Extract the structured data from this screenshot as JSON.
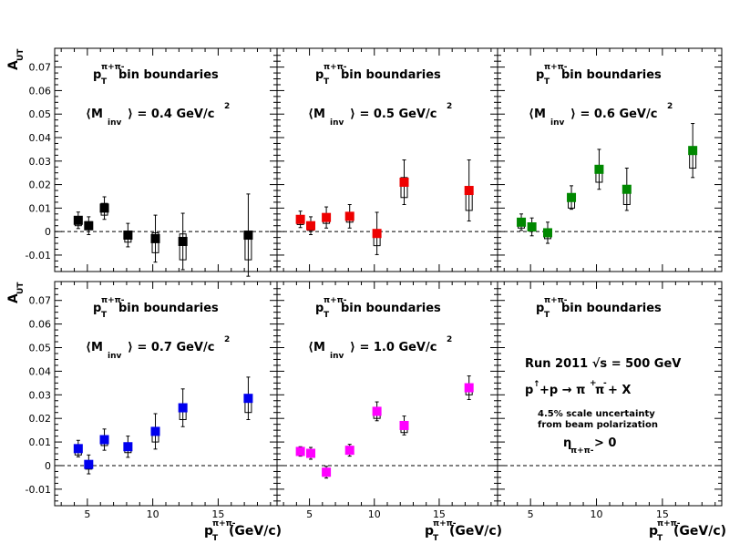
{
  "chart_data": [
    {
      "type": "scatter",
      "panel": "top-left",
      "ylabel": "A_UT",
      "header": "p_T^{π+π-} bin boundaries",
      "mass_label": "⟨M_inv⟩ = 0.4 GeV/c²",
      "color": "#000000",
      "xlim": [
        2.5,
        19.5
      ],
      "ylim": [
        -0.017,
        0.078
      ],
      "points": [
        {
          "x": 4.3,
          "y": 0.0048,
          "err": 0.0035,
          "sys_lo": 0.0025,
          "sys_hi": 0.0062
        },
        {
          "x": 5.1,
          "y": 0.0025,
          "err": 0.0038,
          "sys_lo": 0.0008,
          "sys_hi": 0.0042
        },
        {
          "x": 6.3,
          "y": 0.01,
          "err": 0.0048,
          "sys_lo": 0.007,
          "sys_hi": 0.012
        },
        {
          "x": 8.1,
          "y": -0.0015,
          "err": 0.005,
          "sys_lo": -0.0045,
          "sys_hi": 0.0002
        },
        {
          "x": 10.2,
          "y": -0.003,
          "err": 0.01,
          "sys_lo": -0.009,
          "sys_hi": -0.0005
        },
        {
          "x": 12.3,
          "y": -0.0042,
          "err": 0.012,
          "sys_lo": -0.012,
          "sys_hi": -0.001
        },
        {
          "x": 17.3,
          "y": -0.0015,
          "err": 0.0175,
          "sys_lo": -0.012,
          "sys_hi": 0.0
        }
      ]
    },
    {
      "type": "scatter",
      "panel": "top-middle",
      "header": "p_T^{π+π-} bin boundaries",
      "mass_label": "⟨M_inv⟩ = 0.5 GeV/c²",
      "color": "#ee0000",
      "xlim": [
        2.5,
        19.5
      ],
      "ylim": [
        -0.017,
        0.078
      ],
      "points": [
        {
          "x": 4.3,
          "y": 0.0052,
          "err": 0.0035,
          "sys_lo": 0.003,
          "sys_hi": 0.006
        },
        {
          "x": 5.1,
          "y": 0.0025,
          "err": 0.0038,
          "sys_lo": 0.0005,
          "sys_hi": 0.0035
        },
        {
          "x": 6.3,
          "y": 0.006,
          "err": 0.0045,
          "sys_lo": 0.0035,
          "sys_hi": 0.0075
        },
        {
          "x": 8.1,
          "y": 0.0065,
          "err": 0.005,
          "sys_lo": 0.004,
          "sys_hi": 0.008
        },
        {
          "x": 10.2,
          "y": -0.0008,
          "err": 0.009,
          "sys_lo": -0.006,
          "sys_hi": 0.0
        },
        {
          "x": 12.3,
          "y": 0.021,
          "err": 0.0095,
          "sys_lo": 0.0145,
          "sys_hi": 0.023
        },
        {
          "x": 17.3,
          "y": 0.0175,
          "err": 0.013,
          "sys_lo": 0.009,
          "sys_hi": 0.019
        }
      ]
    },
    {
      "type": "scatter",
      "panel": "top-right",
      "header": "p_T^{π+π-} bin boundaries",
      "mass_label": "⟨M_inv⟩ = 0.6 GeV/c²",
      "color": "#008800",
      "xlim": [
        2.5,
        19.5
      ],
      "ylim": [
        -0.017,
        0.078
      ],
      "points": [
        {
          "x": 4.3,
          "y": 0.004,
          "err": 0.0035,
          "sys_lo": 0.0015,
          "sys_hi": 0.0048
        },
        {
          "x": 5.1,
          "y": 0.002,
          "err": 0.0038,
          "sys_lo": 0.0002,
          "sys_hi": 0.003
        },
        {
          "x": 6.3,
          "y": -0.0005,
          "err": 0.0045,
          "sys_lo": -0.003,
          "sys_hi": 0.0002
        },
        {
          "x": 8.1,
          "y": 0.0145,
          "err": 0.005,
          "sys_lo": 0.01,
          "sys_hi": 0.016
        },
        {
          "x": 10.2,
          "y": 0.0265,
          "err": 0.0085,
          "sys_lo": 0.021,
          "sys_hi": 0.028
        },
        {
          "x": 12.3,
          "y": 0.018,
          "err": 0.009,
          "sys_lo": 0.0115,
          "sys_hi": 0.0195
        },
        {
          "x": 17.3,
          "y": 0.0345,
          "err": 0.0115,
          "sys_lo": 0.027,
          "sys_hi": 0.036
        }
      ]
    },
    {
      "type": "scatter",
      "panel": "bottom-left",
      "ylabel": "A_UT",
      "xlabel": "p_T^{π+π-}(GeV/c)",
      "header": "p_T^{π+π-} bin boundaries",
      "mass_label": "⟨M_inv⟩ = 0.7 GeV/c²",
      "color": "#0000ee",
      "xlim": [
        2.5,
        19.5
      ],
      "ylim": [
        -0.017,
        0.078
      ],
      "points": [
        {
          "x": 4.3,
          "y": 0.0072,
          "err": 0.0035,
          "sys_lo": 0.0045,
          "sys_hi": 0.008
        },
        {
          "x": 5.1,
          "y": 0.0005,
          "err": 0.004,
          "sys_lo": -0.0015,
          "sys_hi": 0.001
        },
        {
          "x": 6.3,
          "y": 0.011,
          "err": 0.0045,
          "sys_lo": 0.0085,
          "sys_hi": 0.012
        },
        {
          "x": 8.1,
          "y": 0.008,
          "err": 0.0045,
          "sys_lo": 0.0055,
          "sys_hi": 0.009
        },
        {
          "x": 10.2,
          "y": 0.0145,
          "err": 0.0075,
          "sys_lo": 0.01,
          "sys_hi": 0.0155
        },
        {
          "x": 12.3,
          "y": 0.0245,
          "err": 0.008,
          "sys_lo": 0.0195,
          "sys_hi": 0.026
        },
        {
          "x": 17.3,
          "y": 0.0285,
          "err": 0.009,
          "sys_lo": 0.0225,
          "sys_hi": 0.03
        }
      ]
    },
    {
      "type": "scatter",
      "panel": "bottom-middle",
      "xlabel": "p_T^{π+π-} (GeV/c)",
      "header": "p_T^{π+π-} bin boundaries",
      "mass_label": "⟨M_inv⟩ = 1.0 GeV/c²",
      "color": "#ff00ff",
      "xlim": [
        2.5,
        19.5
      ],
      "ylim": [
        -0.017,
        0.078
      ],
      "points": [
        {
          "x": 4.3,
          "y": 0.006,
          "err": 0.002,
          "sys_lo": 0.0045,
          "sys_hi": 0.0065
        },
        {
          "x": 5.1,
          "y": 0.0052,
          "err": 0.0025,
          "sys_lo": 0.0035,
          "sys_hi": 0.0058
        },
        {
          "x": 6.3,
          "y": -0.0028,
          "err": 0.0025,
          "sys_lo": -0.0045,
          "sys_hi": -0.0025
        },
        {
          "x": 8.1,
          "y": 0.0065,
          "err": 0.0025,
          "sys_lo": 0.005,
          "sys_hi": 0.007
        },
        {
          "x": 10.2,
          "y": 0.023,
          "err": 0.004,
          "sys_lo": 0.02,
          "sys_hi": 0.0235
        },
        {
          "x": 12.3,
          "y": 0.017,
          "err": 0.004,
          "sys_lo": 0.014,
          "sys_hi": 0.0175
        },
        {
          "x": 17.3,
          "y": 0.033,
          "err": 0.005,
          "sys_lo": 0.03,
          "sys_hi": 0.0335
        }
      ]
    },
    {
      "type": "scatter",
      "panel": "bottom-right",
      "xlabel": "p_T^{π+π-} (GeV/c)",
      "header": "p_T^{π+π-} bin boundaries",
      "legend_text": [
        "Run 2011 √s = 500 GeV",
        "p↑+p → π+π- + X",
        "4.5% scale uncertainty",
        "from beam polarization",
        "η_{π+π-} > 0"
      ],
      "xlim": [
        2.5,
        19.5
      ],
      "ylim": [
        -0.017,
        0.078
      ],
      "points": []
    }
  ],
  "axes": {
    "y_ticks": [
      -0.01,
      0,
      0.01,
      0.02,
      0.03,
      0.04,
      0.05,
      0.06,
      0.07
    ],
    "y_tick_labels": [
      "-0.01",
      "0",
      "0.01",
      "0.02",
      "0.03",
      "0.04",
      "0.05",
      "0.06",
      "0.07"
    ],
    "x_ticks": [
      5,
      10,
      15
    ],
    "x_tick_labels": [
      "5",
      "10",
      "15"
    ],
    "ylabel_main": "A",
    "ylabel_sub": "UT",
    "xlabel_main": "p",
    "xlabel_sub": "T",
    "xlabel_sup": "π+π-",
    "xlabel_unit": "(GeV/c)"
  },
  "text": {
    "header_p": "p",
    "header_sub": "T",
    "header_sup": "π+π-",
    "header_tail": " bin boundaries",
    "mass_prefix": "⟨M",
    "mass_sub": "inv",
    "mass_0": "⟩ = 0.4 GeV/c",
    "mass_1": "⟩ = 0.5 GeV/c",
    "mass_2": "⟩ = 0.6 GeV/c",
    "mass_3": "⟩ = 0.7 GeV/c",
    "mass_4": "⟩ = 1.0 GeV/c",
    "mass_sq": "2",
    "run": "Run 2011 √s = 500 GeV",
    "reaction_p": "p",
    "reaction_arrow": "↑",
    "reaction_rest": "+p → π",
    "reaction_plus": "+",
    "reaction_pi2": "π",
    "reaction_minus": "-",
    "reaction_x": " + X",
    "scale1": "4.5% scale uncertainty",
    "scale2": "from beam polarization",
    "eta": "η",
    "eta_sub": "π+π-",
    "eta_gt": "> 0"
  }
}
